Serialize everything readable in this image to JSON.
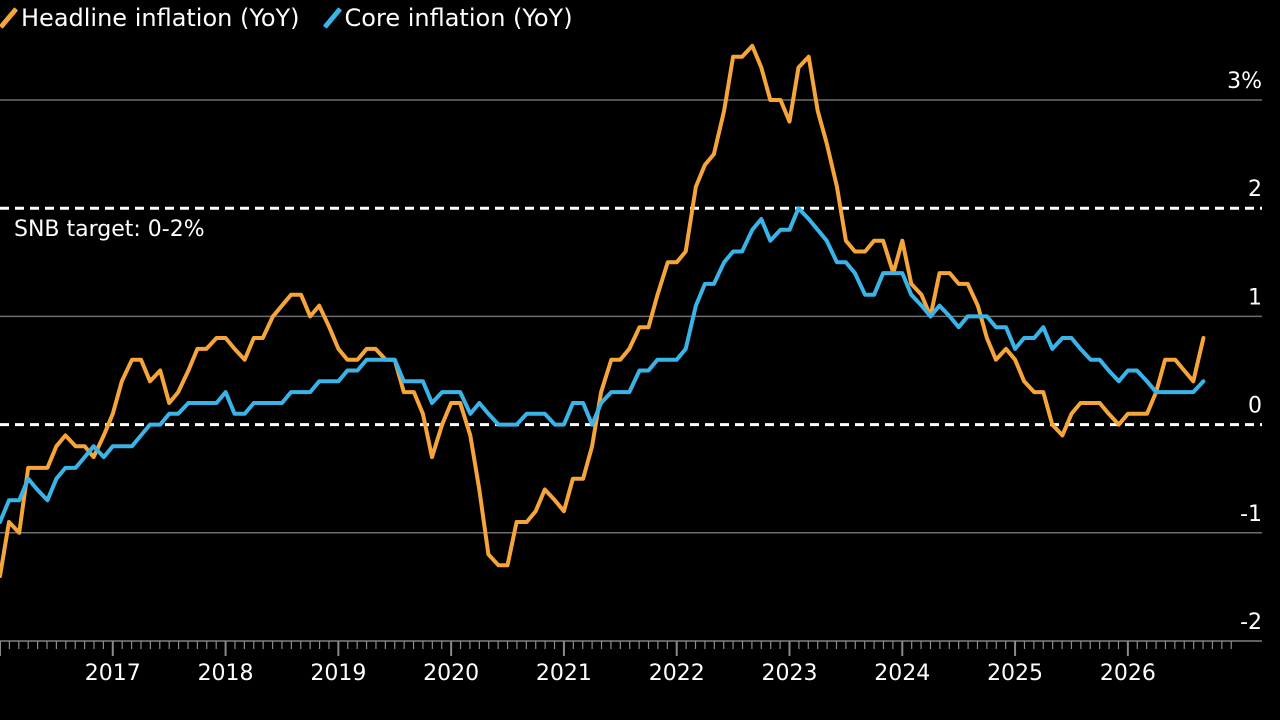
{
  "chart_data": {
    "type": "line",
    "title": "",
    "xlabel": "",
    "ylabel": "",
    "unit": "%",
    "ylim": [
      -2.1,
      3.5
    ],
    "xlim": [
      2016.0,
      2026.95
    ],
    "x_ticks": [
      "2017",
      "2018",
      "2019",
      "2020",
      "2021",
      "2022",
      "2023",
      "2024",
      "2025",
      "2026"
    ],
    "y_ticks": [
      {
        "value": 3,
        "label": "3%"
      },
      {
        "value": 2,
        "label": "2"
      },
      {
        "value": 1,
        "label": "1"
      },
      {
        "value": 0,
        "label": "0"
      },
      {
        "value": -1,
        "label": "-1"
      },
      {
        "value": -2,
        "label": "-2"
      }
    ],
    "grid": true,
    "legend": "top-left",
    "annotation": {
      "text": "SNB target: 0-2%",
      "band": [
        0,
        2
      ]
    },
    "colors": {
      "headline": "#F5A53A",
      "core": "#3AB4E8"
    },
    "series": [
      {
        "name": "Headline inflation (YoY)",
        "key": "headline",
        "points": [
          [
            2016.0,
            -1.4
          ],
          [
            2016.08,
            -0.9
          ],
          [
            2016.17,
            -1.0
          ],
          [
            2016.25,
            -0.4
          ],
          [
            2016.33,
            -0.4
          ],
          [
            2016.42,
            -0.4
          ],
          [
            2016.5,
            -0.2
          ],
          [
            2016.58,
            -0.1
          ],
          [
            2016.67,
            -0.2
          ],
          [
            2016.75,
            -0.2
          ],
          [
            2016.83,
            -0.3
          ],
          [
            2016.92,
            -0.1
          ],
          [
            2017.0,
            0.1
          ],
          [
            2017.08,
            0.4
          ],
          [
            2017.17,
            0.6
          ],
          [
            2017.25,
            0.6
          ],
          [
            2017.33,
            0.4
          ],
          [
            2017.42,
            0.5
          ],
          [
            2017.5,
            0.2
          ],
          [
            2017.58,
            0.3
          ],
          [
            2017.67,
            0.5
          ],
          [
            2017.75,
            0.7
          ],
          [
            2017.83,
            0.7
          ],
          [
            2017.92,
            0.8
          ],
          [
            2018.0,
            0.8
          ],
          [
            2018.08,
            0.7
          ],
          [
            2018.17,
            0.6
          ],
          [
            2018.25,
            0.8
          ],
          [
            2018.33,
            0.8
          ],
          [
            2018.42,
            1.0
          ],
          [
            2018.5,
            1.1
          ],
          [
            2018.58,
            1.2
          ],
          [
            2018.67,
            1.2
          ],
          [
            2018.75,
            1.0
          ],
          [
            2018.83,
            1.1
          ],
          [
            2018.92,
            0.9
          ],
          [
            2019.0,
            0.7
          ],
          [
            2019.08,
            0.6
          ],
          [
            2019.17,
            0.6
          ],
          [
            2019.25,
            0.7
          ],
          [
            2019.33,
            0.7
          ],
          [
            2019.42,
            0.6
          ],
          [
            2019.5,
            0.6
          ],
          [
            2019.58,
            0.3
          ],
          [
            2019.67,
            0.3
          ],
          [
            2019.75,
            0.1
          ],
          [
            2019.83,
            -0.3
          ],
          [
            2019.92,
            0.0
          ],
          [
            2020.0,
            0.2
          ],
          [
            2020.08,
            0.2
          ],
          [
            2020.17,
            -0.1
          ],
          [
            2020.25,
            -0.6
          ],
          [
            2020.33,
            -1.2
          ],
          [
            2020.42,
            -1.3
          ],
          [
            2020.5,
            -1.3
          ],
          [
            2020.58,
            -0.9
          ],
          [
            2020.67,
            -0.9
          ],
          [
            2020.75,
            -0.8
          ],
          [
            2020.83,
            -0.6
          ],
          [
            2020.92,
            -0.7
          ],
          [
            2021.0,
            -0.8
          ],
          [
            2021.08,
            -0.5
          ],
          [
            2021.17,
            -0.5
          ],
          [
            2021.25,
            -0.2
          ],
          [
            2021.33,
            0.3
          ],
          [
            2021.42,
            0.6
          ],
          [
            2021.5,
            0.6
          ],
          [
            2021.58,
            0.7
          ],
          [
            2021.67,
            0.9
          ],
          [
            2021.75,
            0.9
          ],
          [
            2021.83,
            1.2
          ],
          [
            2021.92,
            1.5
          ],
          [
            2022.0,
            1.5
          ],
          [
            2022.08,
            1.6
          ],
          [
            2022.17,
            2.2
          ],
          [
            2022.25,
            2.4
          ],
          [
            2022.33,
            2.5
          ],
          [
            2022.42,
            2.9
          ],
          [
            2022.5,
            3.4
          ],
          [
            2022.58,
            3.4
          ],
          [
            2022.67,
            3.5
          ],
          [
            2022.75,
            3.3
          ],
          [
            2022.83,
            3.0
          ],
          [
            2022.92,
            3.0
          ],
          [
            2023.0,
            2.8
          ],
          [
            2023.08,
            3.3
          ],
          [
            2023.17,
            3.4
          ],
          [
            2023.25,
            2.9
          ],
          [
            2023.33,
            2.6
          ],
          [
            2023.42,
            2.2
          ],
          [
            2023.5,
            1.7
          ],
          [
            2023.58,
            1.6
          ],
          [
            2023.67,
            1.6
          ],
          [
            2023.75,
            1.7
          ],
          [
            2023.83,
            1.7
          ],
          [
            2023.92,
            1.4
          ],
          [
            2024.0,
            1.7
          ],
          [
            2024.08,
            1.3
          ],
          [
            2024.17,
            1.2
          ],
          [
            2024.25,
            1.0
          ],
          [
            2024.33,
            1.4
          ],
          [
            2024.42,
            1.4
          ],
          [
            2024.5,
            1.3
          ],
          [
            2024.58,
            1.3
          ],
          [
            2024.67,
            1.1
          ],
          [
            2024.75,
            0.8
          ],
          [
            2024.83,
            0.6
          ],
          [
            2024.92,
            0.7
          ],
          [
            2025.0,
            0.6
          ],
          [
            2025.08,
            0.4
          ],
          [
            2025.17,
            0.3
          ],
          [
            2025.25,
            0.3
          ],
          [
            2025.33,
            0.0
          ],
          [
            2025.42,
            -0.1
          ],
          [
            2025.5,
            0.1
          ],
          [
            2025.58,
            0.2
          ],
          [
            2025.67,
            0.2
          ],
          [
            2025.75,
            0.2
          ],
          [
            2025.83,
            0.1
          ],
          [
            2025.92,
            0.0
          ],
          [
            2026.0,
            0.1
          ],
          [
            2026.08,
            0.1
          ],
          [
            2026.17,
            0.1
          ],
          [
            2026.25,
            0.3
          ],
          [
            2026.33,
            0.6
          ],
          [
            2026.42,
            0.6
          ],
          [
            2026.5,
            0.5
          ],
          [
            2026.58,
            0.4
          ],
          [
            2026.67,
            0.8
          ]
        ]
      },
      {
        "name": "Core inflation (YoY)",
        "key": "core",
        "points": [
          [
            2016.0,
            -0.9
          ],
          [
            2016.08,
            -0.7
          ],
          [
            2016.17,
            -0.7
          ],
          [
            2016.25,
            -0.5
          ],
          [
            2016.33,
            -0.6
          ],
          [
            2016.42,
            -0.7
          ],
          [
            2016.5,
            -0.5
          ],
          [
            2016.58,
            -0.4
          ],
          [
            2016.67,
            -0.4
          ],
          [
            2016.75,
            -0.3
          ],
          [
            2016.83,
            -0.2
          ],
          [
            2016.92,
            -0.3
          ],
          [
            2017.0,
            -0.2
          ],
          [
            2017.08,
            -0.2
          ],
          [
            2017.17,
            -0.2
          ],
          [
            2017.25,
            -0.1
          ],
          [
            2017.33,
            0.0
          ],
          [
            2017.42,
            0.0
          ],
          [
            2017.5,
            0.1
          ],
          [
            2017.58,
            0.1
          ],
          [
            2017.67,
            0.2
          ],
          [
            2017.75,
            0.2
          ],
          [
            2017.83,
            0.2
          ],
          [
            2017.92,
            0.2
          ],
          [
            2018.0,
            0.3
          ],
          [
            2018.08,
            0.1
          ],
          [
            2018.17,
            0.1
          ],
          [
            2018.25,
            0.2
          ],
          [
            2018.33,
            0.2
          ],
          [
            2018.42,
            0.2
          ],
          [
            2018.5,
            0.2
          ],
          [
            2018.58,
            0.3
          ],
          [
            2018.67,
            0.3
          ],
          [
            2018.75,
            0.3
          ],
          [
            2018.83,
            0.4
          ],
          [
            2018.92,
            0.4
          ],
          [
            2019.0,
            0.4
          ],
          [
            2019.08,
            0.5
          ],
          [
            2019.17,
            0.5
          ],
          [
            2019.25,
            0.6
          ],
          [
            2019.33,
            0.6
          ],
          [
            2019.42,
            0.6
          ],
          [
            2019.5,
            0.6
          ],
          [
            2019.58,
            0.4
          ],
          [
            2019.67,
            0.4
          ],
          [
            2019.75,
            0.4
          ],
          [
            2019.83,
            0.2
          ],
          [
            2019.92,
            0.3
          ],
          [
            2020.0,
            0.3
          ],
          [
            2020.08,
            0.3
          ],
          [
            2020.17,
            0.1
          ],
          [
            2020.25,
            0.2
          ],
          [
            2020.33,
            0.1
          ],
          [
            2020.42,
            0.0
          ],
          [
            2020.5,
            0.0
          ],
          [
            2020.58,
            0.0
          ],
          [
            2020.67,
            0.1
          ],
          [
            2020.75,
            0.1
          ],
          [
            2020.83,
            0.1
          ],
          [
            2020.92,
            0.0
          ],
          [
            2021.0,
            0.0
          ],
          [
            2021.08,
            0.2
          ],
          [
            2021.17,
            0.2
          ],
          [
            2021.25,
            0.0
          ],
          [
            2021.33,
            0.2
          ],
          [
            2021.42,
            0.3
          ],
          [
            2021.5,
            0.3
          ],
          [
            2021.58,
            0.3
          ],
          [
            2021.67,
            0.5
          ],
          [
            2021.75,
            0.5
          ],
          [
            2021.83,
            0.6
          ],
          [
            2021.92,
            0.6
          ],
          [
            2022.0,
            0.6
          ],
          [
            2022.08,
            0.7
          ],
          [
            2022.17,
            1.1
          ],
          [
            2022.25,
            1.3
          ],
          [
            2022.33,
            1.3
          ],
          [
            2022.42,
            1.5
          ],
          [
            2022.5,
            1.6
          ],
          [
            2022.58,
            1.6
          ],
          [
            2022.67,
            1.8
          ],
          [
            2022.75,
            1.9
          ],
          [
            2022.83,
            1.7
          ],
          [
            2022.92,
            1.8
          ],
          [
            2023.0,
            1.8
          ],
          [
            2023.08,
            2.0
          ],
          [
            2023.17,
            1.9
          ],
          [
            2023.25,
            1.8
          ],
          [
            2023.33,
            1.7
          ],
          [
            2023.42,
            1.5
          ],
          [
            2023.5,
            1.5
          ],
          [
            2023.58,
            1.4
          ],
          [
            2023.67,
            1.2
          ],
          [
            2023.75,
            1.2
          ],
          [
            2023.83,
            1.4
          ],
          [
            2023.92,
            1.4
          ],
          [
            2024.0,
            1.4
          ],
          [
            2024.08,
            1.2
          ],
          [
            2024.17,
            1.1
          ],
          [
            2024.25,
            1.0
          ],
          [
            2024.33,
            1.1
          ],
          [
            2024.42,
            1.0
          ],
          [
            2024.5,
            0.9
          ],
          [
            2024.58,
            1.0
          ],
          [
            2024.67,
            1.0
          ],
          [
            2024.75,
            1.0
          ],
          [
            2024.83,
            0.9
          ],
          [
            2024.92,
            0.9
          ],
          [
            2025.0,
            0.7
          ],
          [
            2025.08,
            0.8
          ],
          [
            2025.17,
            0.8
          ],
          [
            2025.25,
            0.9
          ],
          [
            2025.33,
            0.7
          ],
          [
            2025.42,
            0.8
          ],
          [
            2025.5,
            0.8
          ],
          [
            2025.58,
            0.7
          ],
          [
            2025.67,
            0.6
          ],
          [
            2025.75,
            0.6
          ],
          [
            2025.83,
            0.5
          ],
          [
            2025.92,
            0.4
          ],
          [
            2026.0,
            0.5
          ],
          [
            2026.08,
            0.5
          ],
          [
            2026.17,
            0.4
          ],
          [
            2026.25,
            0.3
          ],
          [
            2026.33,
            0.3
          ],
          [
            2026.42,
            0.3
          ],
          [
            2026.5,
            0.3
          ],
          [
            2026.58,
            0.3
          ],
          [
            2026.67,
            0.4
          ]
        ]
      }
    ]
  }
}
